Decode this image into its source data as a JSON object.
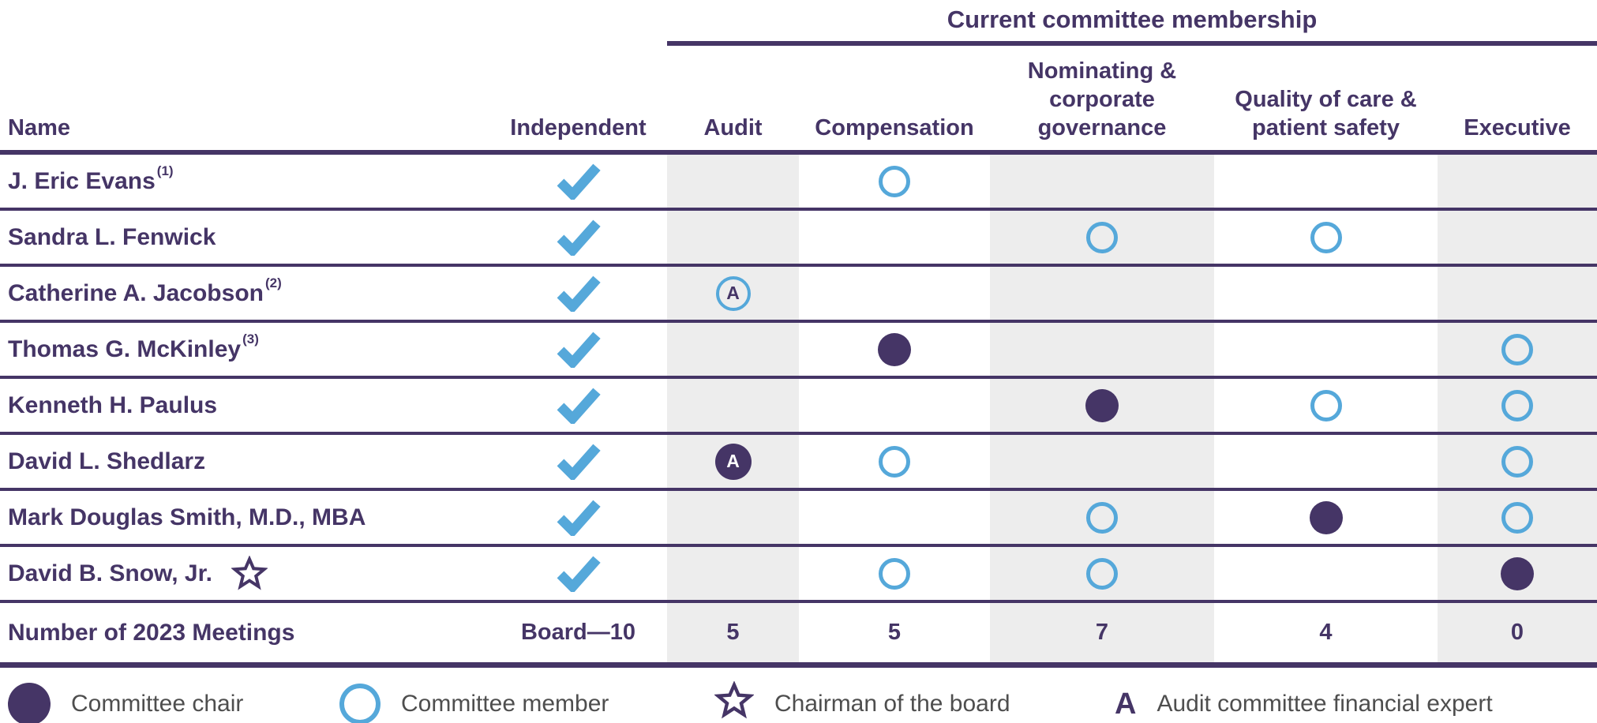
{
  "title": {
    "group_header": "Current committee membership"
  },
  "columns": {
    "name": "Name",
    "independent": "Independent",
    "audit": "Audit",
    "compensation": "Compensation",
    "nominating_1": "Nominating &",
    "nominating_2": "corporate",
    "nominating_3": "governance",
    "quality_1": "Quality of care &",
    "quality_2": "patient safety",
    "executive": "Executive"
  },
  "rows": [
    {
      "name": "J. Eric Evans",
      "footnote": "(1)",
      "star": false,
      "independent": true,
      "audit": "",
      "compensation": "member",
      "nominating": "",
      "quality": "",
      "executive": ""
    },
    {
      "name": "Sandra L. Fenwick",
      "footnote": "",
      "star": false,
      "independent": true,
      "audit": "",
      "compensation": "",
      "nominating": "member",
      "quality": "member",
      "executive": ""
    },
    {
      "name": "Catherine A. Jacobson",
      "footnote": "(2)",
      "star": false,
      "independent": true,
      "audit": "member_A",
      "compensation": "",
      "nominating": "",
      "quality": "",
      "executive": ""
    },
    {
      "name": "Thomas G. McKinley",
      "footnote": "(3)",
      "star": false,
      "independent": true,
      "audit": "",
      "compensation": "chair",
      "nominating": "",
      "quality": "",
      "executive": "member"
    },
    {
      "name": "Kenneth H. Paulus",
      "footnote": "",
      "star": false,
      "independent": true,
      "audit": "",
      "compensation": "",
      "nominating": "chair",
      "quality": "member",
      "executive": "member"
    },
    {
      "name": "David L. Shedlarz",
      "footnote": "",
      "star": false,
      "independent": true,
      "audit": "chair_A",
      "compensation": "member",
      "nominating": "",
      "quality": "",
      "executive": "member"
    },
    {
      "name": "Mark Douglas Smith, M.D., MBA",
      "footnote": "",
      "star": false,
      "independent": true,
      "audit": "",
      "compensation": "",
      "nominating": "member",
      "quality": "chair",
      "executive": "member"
    },
    {
      "name": "David B. Snow, Jr.",
      "footnote": "",
      "star": true,
      "independent": true,
      "audit": "",
      "compensation": "member",
      "nominating": "member",
      "quality": "",
      "executive": "chair"
    }
  ],
  "meetings_row": {
    "label": "Number of 2023 Meetings",
    "board": "Board—10",
    "audit": "5",
    "compensation": "5",
    "nominating": "7",
    "quality": "4",
    "executive": "0"
  },
  "legend": {
    "items": [
      {
        "symbol": "filled-circle",
        "label": "Committee chair"
      },
      {
        "symbol": "open-circle",
        "label": "Committee member"
      },
      {
        "symbol": "star",
        "label": "Chairman of the board"
      },
      {
        "symbol": "A",
        "label": "Audit committee financial expert"
      }
    ],
    "a_glyph": "A"
  },
  "colors": {
    "purple": "#453566",
    "blue": "#55a8da",
    "band": "#ededed",
    "legend_text": "#4e4e4e"
  }
}
